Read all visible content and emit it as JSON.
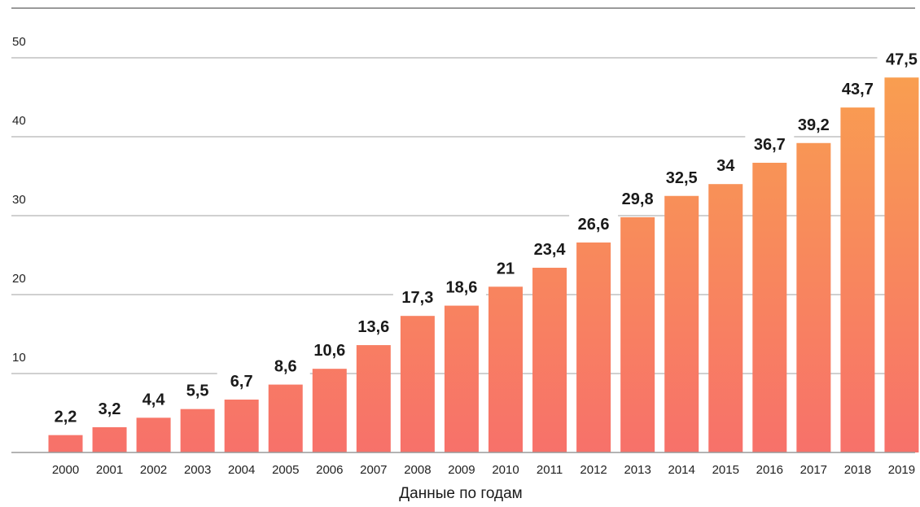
{
  "chart_data": {
    "type": "bar",
    "categories": [
      "2000",
      "2001",
      "2002",
      "2003",
      "2004",
      "2005",
      "2006",
      "2007",
      "2008",
      "2009",
      "2010",
      "2011",
      "2012",
      "2013",
      "2014",
      "2015",
      "2016",
      "2017",
      "2018",
      "2019"
    ],
    "values": [
      2.2,
      3.2,
      4.4,
      5.5,
      6.7,
      8.6,
      10.6,
      13.6,
      17.3,
      18.6,
      21,
      23.4,
      26.6,
      29.8,
      32.5,
      34,
      36.7,
      39.2,
      43.7,
      47.5
    ],
    "value_labels": [
      "2,2",
      "3,2",
      "4,4",
      "5,5",
      "6,7",
      "8,6",
      "10,6",
      "13,6",
      "17,3",
      "18,6",
      "21",
      "23,4",
      "26,6",
      "29,8",
      "32,5",
      "34",
      "36,7",
      "39,2",
      "43,7",
      "47,5"
    ],
    "title": "",
    "xlabel": "Данные по годам",
    "ylabel": "",
    "ylim": [
      0,
      50
    ],
    "yticks": [
      10,
      20,
      30,
      40,
      50
    ],
    "ytick_labels": [
      "10",
      "20",
      "30",
      "40",
      "50"
    ],
    "grid": true,
    "legend": "none",
    "colors": {
      "bar_top": "#f9a04f",
      "bar_bottom": "#f7716a",
      "grid": "#b3b3b3",
      "axis": "#9a9a9a"
    }
  }
}
